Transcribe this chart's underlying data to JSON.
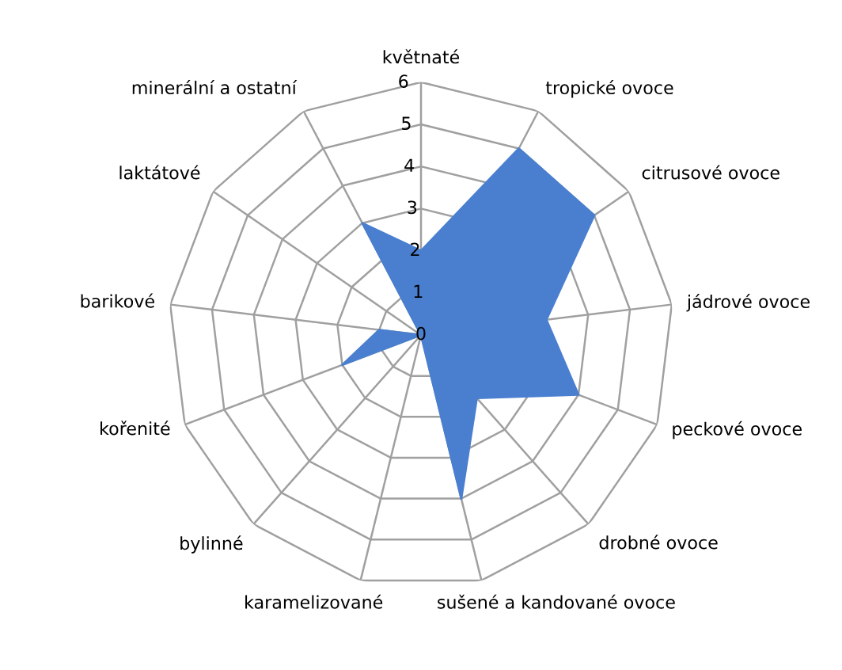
{
  "chart_data": {
    "type": "radar",
    "categories": [
      "květnaté",
      "tropické ovoce",
      "citrusové ovoce",
      "jádrové ovoce",
      "peckové ovoce",
      "drobné ovoce",
      "sušené a kandované ovoce",
      "karamelizované",
      "bylinné",
      "kořenité",
      "barikové",
      "laktátové",
      "minerální a ostatní"
    ],
    "series": [
      {
        "color": "#4a7fd0",
        "values": [
          2,
          5,
          5,
          3,
          4,
          2,
          4,
          0,
          0,
          2,
          1,
          0,
          3
        ]
      }
    ],
    "ylim": [
      0,
      6
    ],
    "yticks": [
      0,
      1,
      2,
      3,
      4,
      5,
      6
    ],
    "grid": true
  }
}
